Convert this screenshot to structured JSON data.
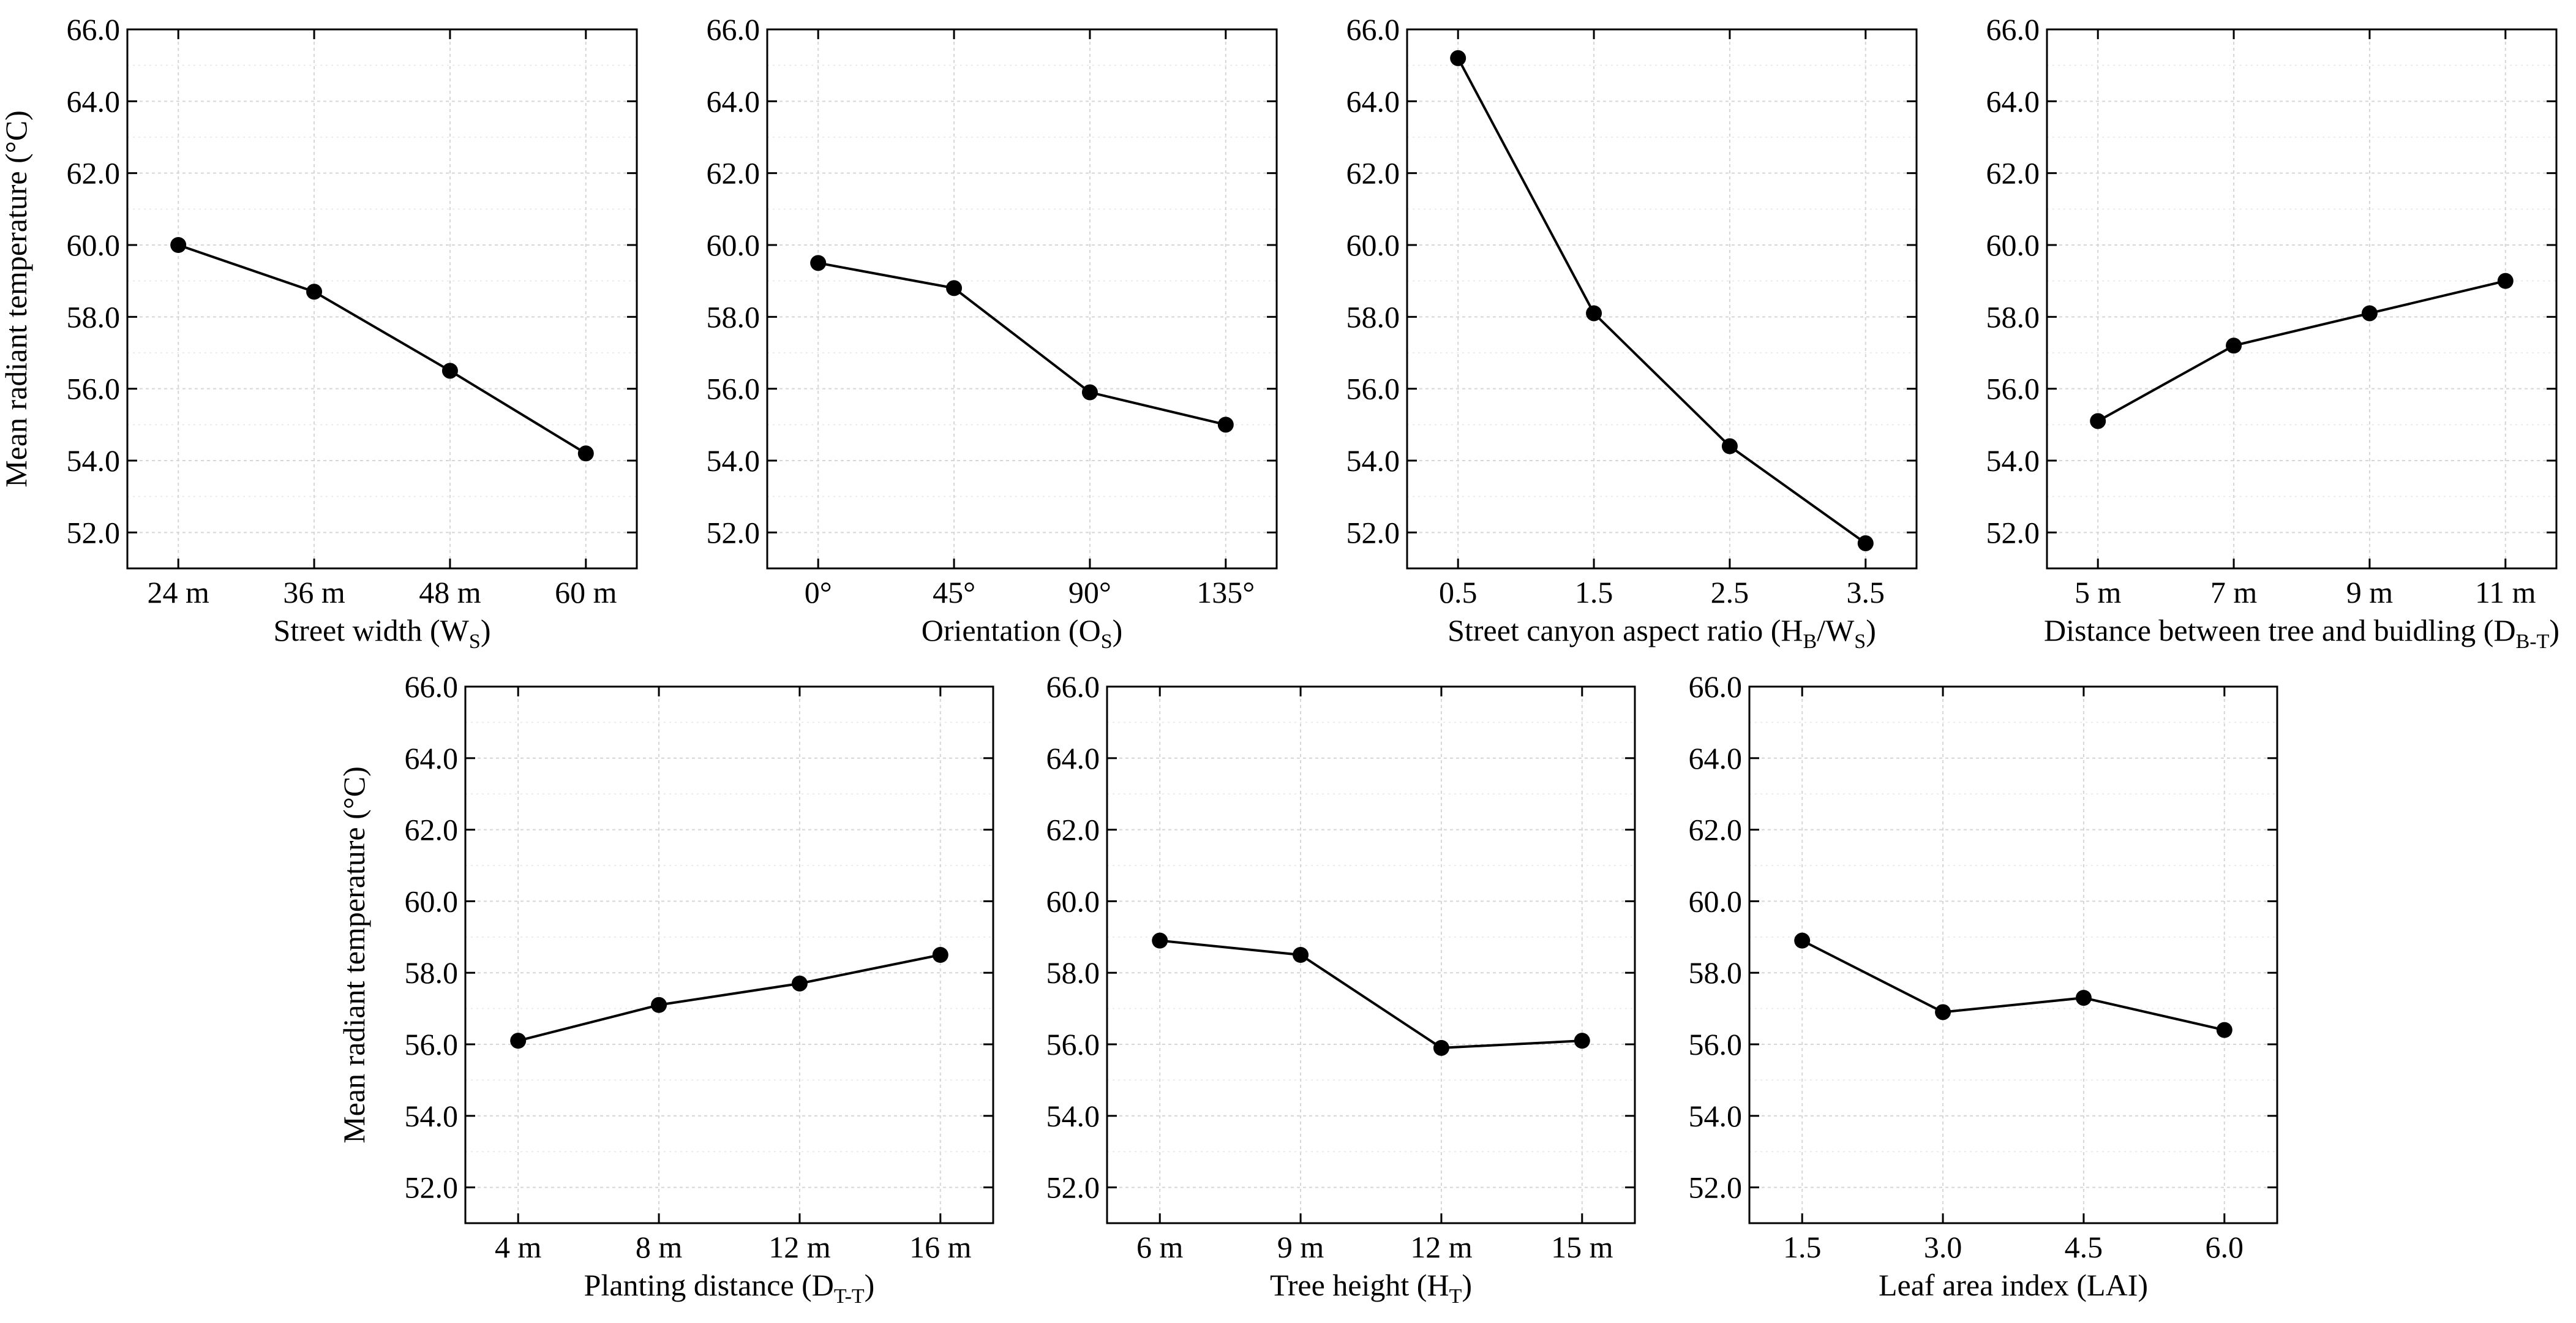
{
  "chart_data": [
    {
      "type": "line",
      "xlabel": "Street width (W",
      "xlabel_sub": "S",
      "xlabel_end": ")",
      "ylabel": "Mean radiant temperature (°C)",
      "categories": [
        "24 m",
        "36 m",
        "48 m",
        "60 m"
      ],
      "values": [
        60.0,
        58.7,
        56.5,
        54.2
      ],
      "ylim": [
        51.0,
        66.0
      ],
      "yticks": [
        "52.0",
        "54.0",
        "56.0",
        "58.0",
        "60.0",
        "62.0",
        "64.0",
        "66.0"
      ],
      "grid": true
    },
    {
      "type": "line",
      "xlabel": "Orientation (O",
      "xlabel_sub": "S",
      "xlabel_end": ")",
      "ylabel": "",
      "categories": [
        "0°",
        "45°",
        "90°",
        "135°"
      ],
      "values": [
        59.5,
        58.8,
        55.9,
        55.0
      ],
      "ylim": [
        51.0,
        66.0
      ],
      "yticks": [
        "52.0",
        "54.0",
        "56.0",
        "58.0",
        "60.0",
        "62.0",
        "64.0",
        "66.0"
      ],
      "grid": true
    },
    {
      "type": "line",
      "xlabel": "Street canyon aspect ratio (H",
      "xlabel_sub": "B",
      "xlabel_mid": "/W",
      "xlabel_sub2": "S",
      "xlabel_end": ")",
      "ylabel": "",
      "categories": [
        "0.5",
        "1.5",
        "2.5",
        "3.5"
      ],
      "values": [
        65.2,
        58.1,
        54.4,
        51.7
      ],
      "ylim": [
        51.0,
        66.0
      ],
      "yticks": [
        "52.0",
        "54.0",
        "56.0",
        "58.0",
        "60.0",
        "62.0",
        "64.0",
        "66.0"
      ],
      "grid": true
    },
    {
      "type": "line",
      "xlabel": "Distance between tree and buidling (D",
      "xlabel_sub": "B-T",
      "xlabel_end": ")",
      "ylabel": "",
      "categories": [
        "5 m",
        "7 m",
        "9 m",
        "11 m"
      ],
      "values": [
        55.1,
        57.2,
        58.1,
        59.0
      ],
      "ylim": [
        51.0,
        66.0
      ],
      "yticks": [
        "52.0",
        "54.0",
        "56.0",
        "58.0",
        "60.0",
        "62.0",
        "64.0",
        "66.0"
      ],
      "grid": true
    },
    {
      "type": "line",
      "xlabel": "Planting distance (D",
      "xlabel_sub": "T-T",
      "xlabel_end": ")",
      "ylabel": "Mean radiant temperature (°C)",
      "categories": [
        "4 m",
        "8 m",
        "12 m",
        "16 m"
      ],
      "values": [
        56.1,
        57.1,
        57.7,
        58.5
      ],
      "ylim": [
        51.0,
        66.0
      ],
      "yticks": [
        "52.0",
        "54.0",
        "56.0",
        "58.0",
        "60.0",
        "62.0",
        "64.0",
        "66.0"
      ],
      "grid": true
    },
    {
      "type": "line",
      "xlabel": "Tree height (H",
      "xlabel_sub": "T",
      "xlabel_end": ")",
      "ylabel": "",
      "categories": [
        "6 m",
        "9 m",
        "12 m",
        "15 m"
      ],
      "values": [
        58.9,
        58.5,
        55.9,
        56.1
      ],
      "ylim": [
        51.0,
        66.0
      ],
      "yticks": [
        "52.0",
        "54.0",
        "56.0",
        "58.0",
        "60.0",
        "62.0",
        "64.0",
        "66.0"
      ],
      "grid": true
    },
    {
      "type": "line",
      "xlabel": "Leaf area index (LAI)",
      "xlabel_sub": "",
      "xlabel_end": "",
      "ylabel": "",
      "categories": [
        "1.5",
        "3.0",
        "4.5",
        "6.0"
      ],
      "values": [
        58.9,
        56.9,
        57.3,
        56.4
      ],
      "ylim": [
        51.0,
        66.0
      ],
      "yticks": [
        "52.0",
        "54.0",
        "56.0",
        "58.0",
        "60.0",
        "62.0",
        "64.0",
        "66.0"
      ],
      "grid": true
    }
  ]
}
